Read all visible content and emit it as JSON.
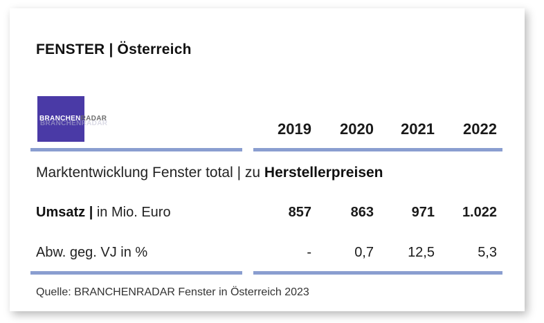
{
  "header": {
    "title": "FENSTER | Österreich"
  },
  "logo": {
    "part1": "BRANCHEN",
    "part2": "RADAR"
  },
  "chart_data": {
    "type": "table",
    "title": "FENSTER | Österreich",
    "subtitle_prefix": "Marktentwicklung Fenster total | zu ",
    "subtitle_bold": "Herstellerpreisen",
    "columns": [
      "2019",
      "2020",
      "2021",
      "2022"
    ],
    "rows": [
      {
        "label_bold": "Umsatz |",
        "label_rest": " in Mio. Euro",
        "values": [
          "857",
          "863",
          "971",
          "1.022"
        ]
      },
      {
        "label_bold": "",
        "label_rest": "Abw. geg. VJ in %",
        "values": [
          "-",
          "0,7",
          "12,5",
          "5,3"
        ]
      }
    ],
    "source": "Quelle: BRANCHENRADAR Fenster in Österreich 2023"
  },
  "colors": {
    "rule": "#8a9ed0",
    "logo_bg": "#4a3aa6"
  }
}
